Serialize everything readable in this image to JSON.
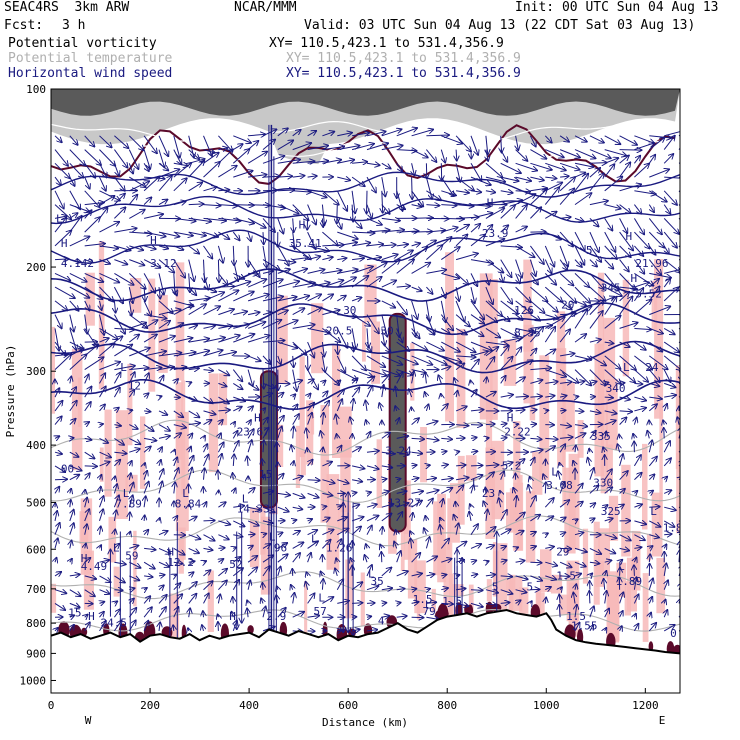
{
  "header": {
    "model": "SEAC4RS  3km ARW",
    "center": "NCAR/MMM",
    "init": "Init: 00 UTC Sun 04 Aug 13",
    "fcst_label": "Fcst:",
    "fcst_value": "3 h",
    "valid": "Valid: 03 UTC Sun 04 Aug 13 (22 CDT Sat 03 Aug 13)",
    "fields": [
      {
        "name": "Potential vorticity",
        "xy": "XY= 110.5,423.1 to 531.4,356.9"
      },
      {
        "name": "Potential temperature",
        "xy": "XY= 110.5,423.1 to 531.4,356.9"
      },
      {
        "name": "Horizontal wind speed",
        "xy": "XY= 110.5,423.1 to 531.4,356.9"
      }
    ]
  },
  "colors": {
    "pv_shade": "#f7b8b8",
    "pv_strong": "#5a5a5a",
    "pv_contour": "#5b0a2a",
    "theta": "#b0b0b0",
    "wind": "#1a1a80",
    "terrain": "#000000"
  },
  "chart_data": {
    "type": "cross-section",
    "xlabel": "Distance (km)",
    "ylabel": "Pressure (hPa)",
    "xlim": [
      0,
      1270
    ],
    "ylim": [
      1050,
      100
    ],
    "xticks": [
      0,
      200,
      400,
      600,
      800,
      1000,
      1200
    ],
    "yticks": [
      100,
      200,
      300,
      400,
      500,
      600,
      700,
      800,
      900,
      1000
    ],
    "y_scale": "log",
    "end_labels": {
      "left": "W",
      "right": "E"
    },
    "terrain": {
      "x": [
        0,
        20,
        40,
        60,
        80,
        100,
        120,
        140,
        160,
        180,
        200,
        220,
        240,
        260,
        280,
        300,
        320,
        340,
        360,
        380,
        400,
        420,
        440,
        460,
        480,
        500,
        520,
        540,
        560,
        580,
        600,
        620,
        640,
        660,
        680,
        700,
        720,
        740,
        760,
        780,
        800,
        820,
        840,
        860,
        880,
        900,
        920,
        940,
        960,
        980,
        1000,
        1010,
        1020,
        1040,
        1060,
        1080,
        1100,
        1120,
        1140,
        1160,
        1180,
        1200,
        1220,
        1240,
        1270
      ],
      "p": [
        840,
        830,
        845,
        835,
        850,
        840,
        830,
        845,
        835,
        860,
        840,
        835,
        845,
        850,
        835,
        855,
        840,
        850,
        840,
        835,
        830,
        845,
        820,
        830,
        840,
        825,
        835,
        845,
        835,
        855,
        840,
        845,
        835,
        830,
        815,
        800,
        820,
        830,
        810,
        790,
        780,
        775,
        770,
        780,
        770,
        765,
        760,
        770,
        775,
        780,
        770,
        790,
        820,
        840,
        855,
        862,
        867,
        870,
        874,
        878,
        882,
        886,
        890,
        895,
        900
      ]
    },
    "theta_contours_K": [
      330,
      335,
      340
    ],
    "pv_shading_threshold_PVU": 1.5,
    "annotations": [
      {
        "text": "H",
        "x": 20,
        "p": 185
      },
      {
        "text": "4.142",
        "x": 20,
        "p": 200
      },
      {
        "text": "H",
        "x": 200,
        "p": 183
      },
      {
        "text": "3.12",
        "x": 200,
        "p": 200
      },
      {
        "text": "H",
        "x": 500,
        "p": 172
      },
      {
        "text": "35.41",
        "x": 480,
        "p": 185
      },
      {
        "text": "H",
        "x": 880,
        "p": 158
      },
      {
        "text": "23.9",
        "x": 870,
        "p": 178
      },
      {
        "text": "H",
        "x": 1160,
        "p": 180
      },
      {
        "text": "21.96",
        "x": 1180,
        "p": 200
      },
      {
        "text": "H",
        "x": 1170,
        "p": 212
      },
      {
        "text": "5.52",
        "x": 1180,
        "p": 225
      },
      {
        "text": "L",
        "x": 10,
        "p": 168
      },
      {
        "text": "20",
        "x": 1030,
        "p": 235
      },
      {
        "text": "345",
        "x": 1110,
        "p": 220
      },
      {
        "text": "30",
        "x": 590,
        "p": 240
      },
      {
        "text": "30",
        "x": 665,
        "p": 260
      },
      {
        "text": "20.5",
        "x": 555,
        "p": 260
      },
      {
        "text": "5",
        "x": 1080,
        "p": 190
      },
      {
        "text": "126",
        "x": 935,
        "p": 240
      },
      {
        "text": "8.35",
        "x": 935,
        "p": 262
      },
      {
        "text": "L",
        "x": 140,
        "p": 300
      },
      {
        "text": "12",
        "x": 155,
        "p": 322
      },
      {
        "text": "L",
        "x": 1155,
        "p": 300
      },
      {
        "text": "24",
        "x": 1200,
        "p": 300
      },
      {
        "text": "340",
        "x": 1120,
        "p": 325
      },
      {
        "text": "H",
        "x": 410,
        "p": 365
      },
      {
        "text": "23.67",
        "x": 375,
        "p": 385
      },
      {
        "text": "15",
        "x": 420,
        "p": 455
      },
      {
        "text": "H",
        "x": 920,
        "p": 365
      },
      {
        "text": "2.22",
        "x": 915,
        "p": 385
      },
      {
        "text": "5.2",
        "x": 910,
        "p": 440
      },
      {
        "text": "3.24",
        "x": 675,
        "p": 415
      },
      {
        "text": "335",
        "x": 1090,
        "p": 392
      },
      {
        "text": "00",
        "x": 20,
        "p": 445
      },
      {
        "text": "L",
        "x": 850,
        "p": 470
      },
      {
        "text": "23",
        "x": 870,
        "p": 490
      },
      {
        "text": "L",
        "x": 1010,
        "p": 450
      },
      {
        "text": "3.08",
        "x": 1000,
        "p": 475
      },
      {
        "text": "330",
        "x": 1095,
        "p": 470
      },
      {
        "text": "L",
        "x": 145,
        "p": 490
      },
      {
        "text": "7.89",
        "x": 130,
        "p": 510
      },
      {
        "text": "L",
        "x": 265,
        "p": 490
      },
      {
        "text": "8.84",
        "x": 250,
        "p": 510
      },
      {
        "text": "L",
        "x": 385,
        "p": 500
      },
      {
        "text": "14.33",
        "x": 375,
        "p": 520
      },
      {
        "text": "13.27",
        "x": 680,
        "p": 508
      },
      {
        "text": "325",
        "x": 1110,
        "p": 525
      },
      {
        "text": "L",
        "x": 1210,
        "p": 525
      },
      {
        "text": "1.8",
        "x": 1235,
        "p": 560
      },
      {
        "text": "L",
        "x": 440,
        "p": 580
      },
      {
        "text": "96",
        "x": 450,
        "p": 605
      },
      {
        "text": "L",
        "x": 525,
        "p": 585
      },
      {
        "text": "1.26",
        "x": 555,
        "p": 605
      },
      {
        "text": "L",
        "x": 125,
        "p": 605
      },
      {
        "text": "59",
        "x": 150,
        "p": 625
      },
      {
        "text": "H",
        "x": 60,
        "p": 630
      },
      {
        "text": "4.49",
        "x": 60,
        "p": 650
      },
      {
        "text": "H",
        "x": 235,
        "p": 615
      },
      {
        "text": "12.2",
        "x": 235,
        "p": 640
      },
      {
        "text": "52",
        "x": 360,
        "p": 645
      },
      {
        "text": "29",
        "x": 1020,
        "p": 615
      },
      {
        "text": "1.5",
        "x": 1020,
        "p": 675
      },
      {
        "text": "L",
        "x": 1145,
        "p": 650
      },
      {
        "text": "1.89",
        "x": 1140,
        "p": 690
      },
      {
        "text": "L",
        "x": 640,
        "p": 670
      },
      {
        "text": "35",
        "x": 645,
        "p": 690
      },
      {
        "text": "5",
        "x": 890,
        "p": 705
      },
      {
        "text": "5",
        "x": 960,
        "p": 705
      },
      {
        "text": "L",
        "x": 540,
        "p": 735
      },
      {
        "text": "1.5",
        "x": 730,
        "p": 740
      },
      {
        "text": "1.5",
        "x": 790,
        "p": 745
      },
      {
        "text": "L",
        "x": 755,
        "p": 755
      },
      {
        "text": "79",
        "x": 750,
        "p": 775
      },
      {
        "text": "57",
        "x": 530,
        "p": 775
      },
      {
        "text": "H",
        "x": 75,
        "p": 790
      },
      {
        "text": "24.5",
        "x": 100,
        "p": 810
      },
      {
        "text": "H",
        "x": 360,
        "p": 790
      },
      {
        "text": "2.9",
        "x": 435,
        "p": 790
      },
      {
        "text": "4",
        "x": 660,
        "p": 805
      },
      {
        "text": "1.55",
        "x": 1050,
        "p": 820
      },
      {
        "text": "1.5",
        "x": 1040,
        "p": 790
      },
      {
        "text": "0",
        "x": 1250,
        "p": 845
      },
      {
        "text": "15",
        "x": 35,
        "p": 780
      }
    ]
  }
}
